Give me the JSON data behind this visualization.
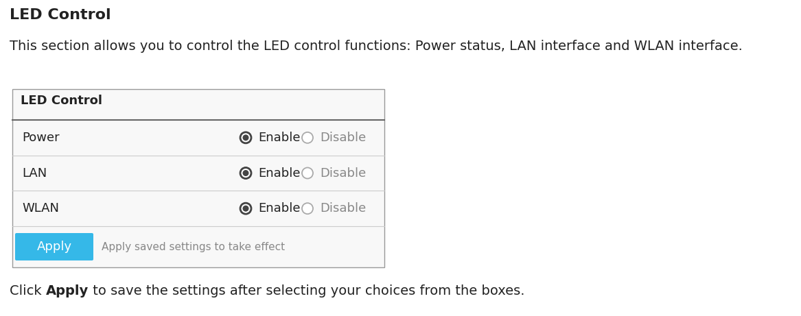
{
  "title": "LED Control",
  "description": "This section allows you to control the LED control functions: Power status, LAN interface and WLAN interface.",
  "table_title": "LED Control",
  "rows": [
    "Power",
    "LAN",
    "WLAN"
  ],
  "enable_label": "Enable",
  "disable_label": "Disable",
  "apply_button_text": "Apply",
  "apply_note": "Apply saved settings to take effect",
  "footer_pre": "Click ",
  "footer_bold": "Apply",
  "footer_post": " to save the settings after selecting your choices from the boxes.",
  "bg_color": "#ffffff",
  "table_border_color": "#999999",
  "header_line_color": "#666666",
  "row_line_color": "#cccccc",
  "apply_btn_color": "#35b8e8",
  "apply_btn_text_color": "#ffffff",
  "text_color": "#222222",
  "gray_text_color": "#888888",
  "title_fontsize": 16,
  "desc_fontsize": 14,
  "table_header_fontsize": 13,
  "row_fontsize": 13,
  "apply_note_fontsize": 11,
  "footer_fontsize": 14,
  "fig_width": 11.67,
  "fig_height": 4.61,
  "dpi": 100
}
